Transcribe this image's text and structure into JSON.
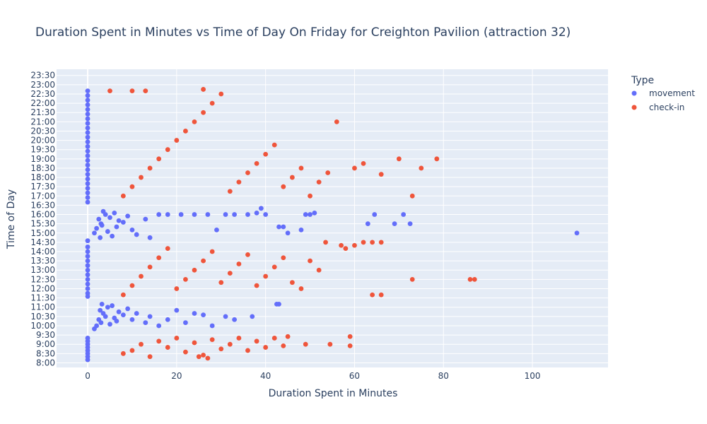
{
  "chart_data": {
    "type": "scatter",
    "title": "Duration Spent in Minutes vs Time of Day On Friday for Creighton Pavilion (attraction 32)",
    "xlabel": "Duration Spent in Minutes",
    "ylabel": "Time of Day",
    "xlim": [
      -7,
      117
    ],
    "ylim": [
      "7:45",
      "23:50"
    ],
    "x_ticks": [
      0,
      20,
      40,
      60,
      80,
      100
    ],
    "y_ticks": [
      "8:00",
      "8:30",
      "9:00",
      "9:30",
      "10:00",
      "10:30",
      "11:00",
      "11:30",
      "12:00",
      "12:30",
      "13:00",
      "13:30",
      "14:00",
      "14:30",
      "15:00",
      "15:30",
      "16:00",
      "16:30",
      "17:00",
      "17:30",
      "18:00",
      "18:30",
      "19:00",
      "19:30",
      "20:00",
      "20:30",
      "21:00",
      "21:30",
      "22:00",
      "22:30",
      "23:00",
      "23:30"
    ],
    "grid": true,
    "legend_title": "Type",
    "legend_position": "right",
    "colors": {
      "background": "#e5ecf6",
      "grid": "#ffffff",
      "movement": "#636efa",
      "check-in": "#ef553b"
    },
    "series": [
      {
        "name": "movement",
        "points": [
          [
            0,
            "8:10"
          ],
          [
            0,
            "8:20"
          ],
          [
            0,
            "8:30"
          ],
          [
            0,
            "8:40"
          ],
          [
            0,
            "8:50"
          ],
          [
            0,
            "9:00"
          ],
          [
            0,
            "9:10"
          ],
          [
            0,
            "9:20"
          ],
          [
            0,
            "11:35"
          ],
          [
            0,
            "11:45"
          ],
          [
            0,
            "12:00"
          ],
          [
            0,
            "12:15"
          ],
          [
            0,
            "12:30"
          ],
          [
            0,
            "12:45"
          ],
          [
            0,
            "13:00"
          ],
          [
            0,
            "13:15"
          ],
          [
            0,
            "13:30"
          ],
          [
            0,
            "13:45"
          ],
          [
            0,
            "14:00"
          ],
          [
            0,
            "14:15"
          ],
          [
            0,
            "14:35"
          ],
          [
            0,
            "16:40"
          ],
          [
            0,
            "16:55"
          ],
          [
            0,
            "17:10"
          ],
          [
            0,
            "17:25"
          ],
          [
            0,
            "17:40"
          ],
          [
            0,
            "17:55"
          ],
          [
            0,
            "18:10"
          ],
          [
            0,
            "18:25"
          ],
          [
            0,
            "18:40"
          ],
          [
            0,
            "18:55"
          ],
          [
            0,
            "19:10"
          ],
          [
            0,
            "19:25"
          ],
          [
            0,
            "19:40"
          ],
          [
            0,
            "19:55"
          ],
          [
            0,
            "20:10"
          ],
          [
            0,
            "20:25"
          ],
          [
            0,
            "20:40"
          ],
          [
            0,
            "20:55"
          ],
          [
            0,
            "21:10"
          ],
          [
            0,
            "21:25"
          ],
          [
            0,
            "21:40"
          ],
          [
            0,
            "21:55"
          ],
          [
            0,
            "22:10"
          ],
          [
            0,
            "22:25"
          ],
          [
            0,
            "22:40"
          ],
          [
            1.5,
            "9:50"
          ],
          [
            2,
            "10:00"
          ],
          [
            3,
            "10:10"
          ],
          [
            2.5,
            "10:20"
          ],
          [
            4,
            "10:30"
          ],
          [
            3.5,
            "10:40"
          ],
          [
            2.8,
            "10:50"
          ],
          [
            4.5,
            "11:00"
          ],
          [
            3.2,
            "11:10"
          ],
          [
            5,
            "10:05"
          ],
          [
            6,
            "10:25"
          ],
          [
            7,
            "10:45"
          ],
          [
            5.5,
            "11:05"
          ],
          [
            6.5,
            "10:15"
          ],
          [
            8,
            "10:35"
          ],
          [
            9,
            "10:55"
          ],
          [
            10,
            "10:20"
          ],
          [
            11,
            "10:40"
          ],
          [
            13,
            "10:10"
          ],
          [
            14,
            "10:30"
          ],
          [
            16,
            "10:00"
          ],
          [
            18,
            "10:20"
          ],
          [
            20,
            "10:50"
          ],
          [
            22,
            "10:10"
          ],
          [
            24,
            "10:40"
          ],
          [
            26,
            "10:35"
          ],
          [
            28,
            "10:00"
          ],
          [
            31,
            "10:30"
          ],
          [
            33,
            "10:20"
          ],
          [
            37,
            "10:30"
          ],
          [
            42.5,
            "11:10"
          ],
          [
            43,
            "11:10"
          ],
          [
            1.5,
            "15:00"
          ],
          [
            2,
            "15:15"
          ],
          [
            3,
            "15:30"
          ],
          [
            2.5,
            "15:45"
          ],
          [
            4,
            "16:00"
          ],
          [
            3.5,
            "16:10"
          ],
          [
            2.8,
            "14:45"
          ],
          [
            4.5,
            "15:05"
          ],
          [
            3.2,
            "15:25"
          ],
          [
            5,
            "15:50"
          ],
          [
            6,
            "16:05"
          ],
          [
            7,
            "15:40"
          ],
          [
            5.5,
            "14:50"
          ],
          [
            6.5,
            "15:20"
          ],
          [
            8,
            "15:35"
          ],
          [
            9,
            "15:55"
          ],
          [
            10,
            "15:10"
          ],
          [
            11,
            "14:55"
          ],
          [
            13,
            "15:45"
          ],
          [
            14,
            "14:45"
          ],
          [
            16,
            "16:00"
          ],
          [
            18,
            "16:00"
          ],
          [
            21,
            "16:00"
          ],
          [
            24,
            "16:00"
          ],
          [
            27,
            "16:00"
          ],
          [
            29,
            "15:10"
          ],
          [
            31,
            "16:00"
          ],
          [
            33,
            "16:00"
          ],
          [
            36,
            "16:00"
          ],
          [
            38,
            "16:05"
          ],
          [
            39,
            "16:20"
          ],
          [
            40,
            "16:00"
          ],
          [
            43,
            "15:20"
          ],
          [
            44,
            "15:20"
          ],
          [
            45,
            "15:00"
          ],
          [
            48,
            "15:10"
          ],
          [
            49,
            "16:00"
          ],
          [
            50,
            "16:00"
          ],
          [
            51,
            "16:05"
          ],
          [
            63,
            "15:30"
          ],
          [
            64.5,
            "16:00"
          ],
          [
            69,
            "15:30"
          ],
          [
            71,
            "16:00"
          ],
          [
            72.5,
            "15:30"
          ],
          [
            110,
            "15:00"
          ]
        ]
      },
      {
        "name": "check-in",
        "points": [
          [
            8,
            "8:30"
          ],
          [
            10,
            "8:40"
          ],
          [
            12,
            "9:00"
          ],
          [
            14,
            "8:20"
          ],
          [
            16,
            "9:10"
          ],
          [
            18,
            "8:50"
          ],
          [
            20,
            "9:20"
          ],
          [
            22,
            "8:35"
          ],
          [
            24,
            "9:05"
          ],
          [
            26,
            "8:25"
          ],
          [
            28,
            "9:15"
          ],
          [
            30,
            "8:45"
          ],
          [
            32,
            "9:00"
          ],
          [
            34,
            "9:20"
          ],
          [
            36,
            "8:40"
          ],
          [
            38,
            "9:10"
          ],
          [
            40,
            "8:50"
          ],
          [
            42,
            "9:20"
          ],
          [
            44,
            "8:55"
          ],
          [
            45,
            "9:25"
          ],
          [
            49,
            "9:00"
          ],
          [
            54.5,
            "9:00"
          ],
          [
            59,
            "9:25"
          ],
          [
            59,
            "8:55"
          ],
          [
            27,
            "8:15"
          ],
          [
            25,
            "8:20"
          ],
          [
            8,
            "11:40"
          ],
          [
            10,
            "12:10"
          ],
          [
            12,
            "12:40"
          ],
          [
            14,
            "13:10"
          ],
          [
            16,
            "13:40"
          ],
          [
            18,
            "14:10"
          ],
          [
            20,
            "12:00"
          ],
          [
            22,
            "12:30"
          ],
          [
            24,
            "13:00"
          ],
          [
            26,
            "13:30"
          ],
          [
            28,
            "14:00"
          ],
          [
            30,
            "12:20"
          ],
          [
            32,
            "12:50"
          ],
          [
            34,
            "13:20"
          ],
          [
            36,
            "13:50"
          ],
          [
            38,
            "12:10"
          ],
          [
            40,
            "12:40"
          ],
          [
            42,
            "13:10"
          ],
          [
            44,
            "13:40"
          ],
          [
            46,
            "12:20"
          ],
          [
            48,
            "12:00"
          ],
          [
            50,
            "13:30"
          ],
          [
            52,
            "13:00"
          ],
          [
            53.5,
            "14:30"
          ],
          [
            57,
            "14:20"
          ],
          [
            58,
            "14:10"
          ],
          [
            60,
            "14:20"
          ],
          [
            62,
            "14:30"
          ],
          [
            64,
            "14:30"
          ],
          [
            66,
            "14:30"
          ],
          [
            64,
            "11:40"
          ],
          [
            66,
            "11:40"
          ],
          [
            73,
            "12:30"
          ],
          [
            86,
            "12:30"
          ],
          [
            87,
            "12:30"
          ],
          [
            8,
            "17:00"
          ],
          [
            10,
            "17:30"
          ],
          [
            12,
            "18:00"
          ],
          [
            14,
            "18:30"
          ],
          [
            16,
            "19:00"
          ],
          [
            18,
            "19:30"
          ],
          [
            20,
            "20:00"
          ],
          [
            22,
            "20:30"
          ],
          [
            24,
            "21:00"
          ],
          [
            26,
            "21:30"
          ],
          [
            28,
            "22:00"
          ],
          [
            30,
            "22:30"
          ],
          [
            32,
            "17:15"
          ],
          [
            34,
            "17:45"
          ],
          [
            36,
            "18:15"
          ],
          [
            38,
            "18:45"
          ],
          [
            40,
            "19:15"
          ],
          [
            42,
            "19:45"
          ],
          [
            44,
            "17:30"
          ],
          [
            46,
            "18:00"
          ],
          [
            48,
            "18:30"
          ],
          [
            50,
            "17:00"
          ],
          [
            52,
            "17:45"
          ],
          [
            54,
            "18:15"
          ],
          [
            56,
            "21:00"
          ],
          [
            60,
            "18:30"
          ],
          [
            62,
            "18:45"
          ],
          [
            66,
            "18:10"
          ],
          [
            70,
            "19:00"
          ],
          [
            73,
            "17:00"
          ],
          [
            75,
            "18:30"
          ],
          [
            78.5,
            "19:00"
          ],
          [
            26,
            "22:45"
          ],
          [
            10,
            "22:40"
          ],
          [
            13,
            "22:40"
          ],
          [
            5,
            "22:40"
          ]
        ]
      }
    ]
  }
}
